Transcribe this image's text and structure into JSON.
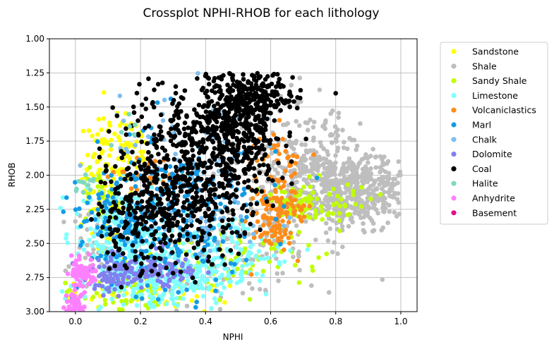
{
  "chart_data": {
    "type": "scatter",
    "title": "Crossplot NPHI-RHOB for each lithology",
    "xlabel": "NPHI",
    "ylabel": "RHOB",
    "xlim": [
      -0.08,
      1.05
    ],
    "ylim": [
      3.0,
      1.0
    ],
    "y_inverted": true,
    "grid": true,
    "legend_placement": "outside-right",
    "xticks": [
      "0.0",
      "0.2",
      "0.4",
      "0.6",
      "0.8",
      "1.0"
    ],
    "yticks": [
      "1.00",
      "1.25",
      "1.50",
      "1.75",
      "2.00",
      "2.25",
      "2.50",
      "2.75",
      "3.00"
    ],
    "series": [
      {
        "name": "Sandstone",
        "color": "#ffff00",
        "clusters": [
          {
            "cx": 0.1,
            "cy": 2.05,
            "sx": 0.04,
            "sy": 0.25,
            "n": 110
          },
          {
            "cx": 0.15,
            "cy": 1.8,
            "sx": 0.05,
            "sy": 0.15,
            "n": 50
          },
          {
            "cx": 0.25,
            "cy": 2.85,
            "sx": 0.1,
            "sy": 0.1,
            "n": 60
          },
          {
            "cx": 0.0,
            "cy": 2.85,
            "sx": 0.03,
            "sy": 0.06,
            "n": 15
          }
        ]
      },
      {
        "name": "Shale",
        "color": "#bebebe",
        "clusters": [
          {
            "cx": 0.86,
            "cy": 2.1,
            "sx": 0.09,
            "sy": 0.13,
            "n": 520
          },
          {
            "cx": 0.72,
            "cy": 1.95,
            "sx": 0.06,
            "sy": 0.22,
            "n": 200
          },
          {
            "cx": 0.55,
            "cy": 2.5,
            "sx": 0.15,
            "sy": 0.22,
            "n": 120
          },
          {
            "cx": 0.05,
            "cy": 2.55,
            "sx": 0.04,
            "sy": 0.12,
            "n": 40
          },
          {
            "cx": 0.6,
            "cy": 1.7,
            "sx": 0.1,
            "sy": 0.25,
            "n": 60
          }
        ]
      },
      {
        "name": "Sandy Shale",
        "color": "#bfff00",
        "clusters": [
          {
            "cx": 0.72,
            "cy": 2.2,
            "sx": 0.08,
            "sy": 0.08,
            "n": 90
          },
          {
            "cx": 0.18,
            "cy": 2.85,
            "sx": 0.08,
            "sy": 0.1,
            "n": 60
          },
          {
            "cx": 0.5,
            "cy": 2.6,
            "sx": 0.12,
            "sy": 0.12,
            "n": 60
          },
          {
            "cx": 0.08,
            "cy": 2.15,
            "sx": 0.04,
            "sy": 0.1,
            "n": 30
          }
        ]
      },
      {
        "name": "Limestone",
        "color": "#80ffff",
        "clusters": [
          {
            "cx": 0.14,
            "cy": 2.5,
            "sx": 0.07,
            "sy": 0.22,
            "n": 220
          },
          {
            "cx": 0.3,
            "cy": 2.75,
            "sx": 0.12,
            "sy": 0.12,
            "n": 260
          },
          {
            "cx": 0.45,
            "cy": 2.55,
            "sx": 0.1,
            "sy": 0.12,
            "n": 100
          }
        ]
      },
      {
        "name": "Volcaniclastics",
        "color": "#ff8c1a",
        "clusters": [
          {
            "cx": 0.62,
            "cy": 2.3,
            "sx": 0.04,
            "sy": 0.12,
            "n": 120
          },
          {
            "cx": 0.62,
            "cy": 1.9,
            "sx": 0.04,
            "sy": 0.12,
            "n": 40
          },
          {
            "cx": 0.22,
            "cy": 2.0,
            "sx": 0.06,
            "sy": 0.1,
            "n": 30
          }
        ]
      },
      {
        "name": "Marl",
        "color": "#149be6",
        "clusters": [
          {
            "cx": 0.28,
            "cy": 2.3,
            "sx": 0.14,
            "sy": 0.28,
            "n": 300
          },
          {
            "cx": 0.15,
            "cy": 2.4,
            "sx": 0.05,
            "sy": 0.15,
            "n": 60
          }
        ]
      },
      {
        "name": "Chalk",
        "color": "#7fbfef",
        "clusters": [
          {
            "cx": 0.3,
            "cy": 1.8,
            "sx": 0.12,
            "sy": 0.18,
            "n": 60
          },
          {
            "cx": 0.4,
            "cy": 2.4,
            "sx": 0.1,
            "sy": 0.15,
            "n": 40
          }
        ]
      },
      {
        "name": "Dolomite",
        "color": "#8080ee",
        "clusters": [
          {
            "cx": 0.22,
            "cy": 2.7,
            "sx": 0.08,
            "sy": 0.06,
            "n": 140
          },
          {
            "cx": 0.1,
            "cy": 2.75,
            "sx": 0.04,
            "sy": 0.05,
            "n": 40
          }
        ]
      },
      {
        "name": "Coal",
        "color": "#000000",
        "clusters": [
          {
            "cx": 0.5,
            "cy": 1.6,
            "sx": 0.07,
            "sy": 0.22,
            "n": 500
          },
          {
            "cx": 0.35,
            "cy": 2.1,
            "sx": 0.1,
            "sy": 0.25,
            "n": 420
          },
          {
            "cx": 0.2,
            "cy": 2.3,
            "sx": 0.07,
            "sy": 0.22,
            "n": 180
          },
          {
            "cx": 0.55,
            "cy": 1.4,
            "sx": 0.06,
            "sy": 0.08,
            "n": 120
          },
          {
            "cx": 0.3,
            "cy": 1.6,
            "sx": 0.1,
            "sy": 0.15,
            "n": 100
          }
        ]
      },
      {
        "name": "Halite",
        "color": "#7fd8c0",
        "clusters": [
          {
            "cx": 0.02,
            "cy": 2.05,
            "sx": 0.02,
            "sy": 0.04,
            "n": 12
          },
          {
            "cx": 0.15,
            "cy": 1.65,
            "sx": 0.04,
            "sy": 0.05,
            "n": 6
          }
        ]
      },
      {
        "name": "Anhydrite",
        "color": "#ff80ff",
        "clusters": [
          {
            "cx": 0.02,
            "cy": 2.71,
            "sx": 0.02,
            "sy": 0.05,
            "n": 70
          },
          {
            "cx": 0.0,
            "cy": 2.94,
            "sx": 0.015,
            "sy": 0.04,
            "n": 50
          }
        ]
      },
      {
        "name": "Basement",
        "color": "#e0118c",
        "clusters": []
      }
    ]
  }
}
